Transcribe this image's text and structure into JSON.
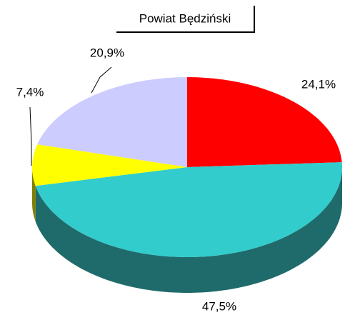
{
  "chart_data": {
    "type": "pie",
    "title": "Powiat Będziński",
    "values": [
      24.1,
      47.5,
      7.4,
      20.9
    ],
    "value_labels": [
      "24,1%",
      "47,5%",
      "7,4%",
      "20,9%"
    ],
    "colors": [
      "#ff0000",
      "#33cccc",
      "#ffff00",
      "#ccccff"
    ],
    "side_colors": [
      "#990000",
      "#1f6b6b",
      "#808000",
      "#7a7a99"
    ]
  }
}
